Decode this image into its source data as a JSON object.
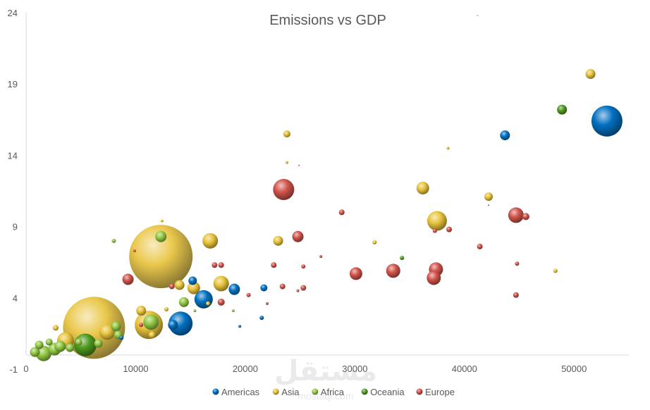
{
  "chart_data": {
    "type": "scatter",
    "title": "Emissions vs GDP",
    "xlabel": "",
    "ylabel": "",
    "xlim": [
      0,
      55000
    ],
    "ylim": [
      -1,
      24
    ],
    "x_ticks": [
      0,
      10000,
      20000,
      30000,
      40000,
      50000
    ],
    "y_ticks": [
      -1,
      4,
      9,
      14,
      19,
      24
    ],
    "grid": false,
    "legend_position": "bottom",
    "series": [
      {
        "name": "Americas",
        "color": "#0070c0",
        "points": [
          {
            "x": 53000,
            "y": 16.4,
            "r": 22
          },
          {
            "x": 43700,
            "y": 15.4,
            "r": 7
          },
          {
            "x": 14100,
            "y": 2.2,
            "r": 17
          },
          {
            "x": 16200,
            "y": 3.9,
            "r": 13
          },
          {
            "x": 13400,
            "y": 2.1,
            "r": 7
          },
          {
            "x": 15200,
            "y": 5.2,
            "r": 6
          },
          {
            "x": 19000,
            "y": 4.6,
            "r": 8
          },
          {
            "x": 21700,
            "y": 4.7,
            "r": 5
          },
          {
            "x": 21500,
            "y": 2.6,
            "r": 3
          },
          {
            "x": 19500,
            "y": 2.0,
            "r": 2
          },
          {
            "x": 8700,
            "y": 1.2,
            "r": 3
          }
        ]
      },
      {
        "name": "Asia",
        "color": "#e8c33c",
        "points": [
          {
            "x": 12300,
            "y": 6.9,
            "r": 45
          },
          {
            "x": 6200,
            "y": 1.9,
            "r": 44
          },
          {
            "x": 11200,
            "y": 2.1,
            "r": 20
          },
          {
            "x": 51500,
            "y": 19.7,
            "r": 7
          },
          {
            "x": 23800,
            "y": 15.5,
            "r": 5
          },
          {
            "x": 36200,
            "y": 11.7,
            "r": 9
          },
          {
            "x": 37500,
            "y": 9.4,
            "r": 14
          },
          {
            "x": 42200,
            "y": 11.1,
            "r": 6
          },
          {
            "x": 16800,
            "y": 8.0,
            "r": 11
          },
          {
            "x": 23000,
            "y": 8.0,
            "r": 7
          },
          {
            "x": 17800,
            "y": 5.0,
            "r": 11
          },
          {
            "x": 15300,
            "y": 4.7,
            "r": 9
          },
          {
            "x": 14000,
            "y": 4.9,
            "r": 7
          },
          {
            "x": 10500,
            "y": 3.1,
            "r": 7
          },
          {
            "x": 7400,
            "y": 1.6,
            "r": 11
          },
          {
            "x": 3600,
            "y": 1.0,
            "r": 12
          },
          {
            "x": 2700,
            "y": 1.9,
            "r": 4
          },
          {
            "x": 11500,
            "y": 1.4,
            "r": 5
          },
          {
            "x": 12800,
            "y": 3.2,
            "r": 3
          },
          {
            "x": 23800,
            "y": 13.5,
            "r": 2
          },
          {
            "x": 38500,
            "y": 14.5,
            "r": 2
          },
          {
            "x": 31800,
            "y": 7.9,
            "r": 3
          },
          {
            "x": 48300,
            "y": 5.9,
            "r": 3
          },
          {
            "x": 41200,
            "y": 23.8,
            "r": 1
          },
          {
            "x": 12400,
            "y": 9.4,
            "r": 2
          },
          {
            "x": 16600,
            "y": 3.6,
            "r": 3
          }
        ]
      },
      {
        "name": "Africa",
        "color": "#92c843",
        "points": [
          {
            "x": 12300,
            "y": 8.3,
            "r": 8
          },
          {
            "x": 8000,
            "y": 8.0,
            "r": 3
          },
          {
            "x": 11400,
            "y": 2.3,
            "r": 11
          },
          {
            "x": 14400,
            "y": 3.7,
            "r": 7
          },
          {
            "x": 8200,
            "y": 2.0,
            "r": 7
          },
          {
            "x": 8400,
            "y": 1.4,
            "r": 6
          },
          {
            "x": 1600,
            "y": 0.1,
            "r": 11
          },
          {
            "x": 2600,
            "y": 0.4,
            "r": 9
          },
          {
            "x": 800,
            "y": 0.2,
            "r": 7
          },
          {
            "x": 3100,
            "y": 0.6,
            "r": 8
          },
          {
            "x": 4000,
            "y": 0.5,
            "r": 6
          },
          {
            "x": 1200,
            "y": 0.7,
            "r": 6
          },
          {
            "x": 2100,
            "y": 0.9,
            "r": 5
          },
          {
            "x": 4800,
            "y": 0.9,
            "r": 5
          },
          {
            "x": 6600,
            "y": 0.8,
            "r": 6
          },
          {
            "x": 15400,
            "y": 3.1,
            "r": 2
          },
          {
            "x": 18900,
            "y": 3.1,
            "r": 2
          }
        ]
      },
      {
        "name": "Oceania",
        "color": "#4e9a1f",
        "points": [
          {
            "x": 48900,
            "y": 17.2,
            "r": 7
          },
          {
            "x": 5400,
            "y": 0.7,
            "r": 16
          },
          {
            "x": 34300,
            "y": 6.8,
            "r": 3
          }
        ]
      },
      {
        "name": "Europe",
        "color": "#d0544a",
        "points": [
          {
            "x": 23500,
            "y": 11.6,
            "r": 15
          },
          {
            "x": 44700,
            "y": 9.8,
            "r": 11
          },
          {
            "x": 45600,
            "y": 9.7,
            "r": 5
          },
          {
            "x": 37400,
            "y": 6.0,
            "r": 10
          },
          {
            "x": 37200,
            "y": 5.4,
            "r": 10
          },
          {
            "x": 33500,
            "y": 5.9,
            "r": 10
          },
          {
            "x": 30100,
            "y": 5.7,
            "r": 9
          },
          {
            "x": 24800,
            "y": 8.3,
            "r": 8
          },
          {
            "x": 9300,
            "y": 5.3,
            "r": 8
          },
          {
            "x": 17800,
            "y": 3.7,
            "r": 5
          },
          {
            "x": 28800,
            "y": 10.0,
            "r": 4
          },
          {
            "x": 38600,
            "y": 8.8,
            "r": 4
          },
          {
            "x": 41400,
            "y": 7.6,
            "r": 4
          },
          {
            "x": 44700,
            "y": 4.2,
            "r": 4
          },
          {
            "x": 44800,
            "y": 6.4,
            "r": 3
          },
          {
            "x": 22600,
            "y": 6.3,
            "r": 4
          },
          {
            "x": 17200,
            "y": 6.3,
            "r": 4
          },
          {
            "x": 17800,
            "y": 6.3,
            "r": 4
          },
          {
            "x": 23400,
            "y": 4.8,
            "r": 4
          },
          {
            "x": 25300,
            "y": 4.7,
            "r": 4
          },
          {
            "x": 25300,
            "y": 6.2,
            "r": 3
          },
          {
            "x": 13300,
            "y": 4.8,
            "r": 4
          },
          {
            "x": 20300,
            "y": 4.2,
            "r": 3
          },
          {
            "x": 22000,
            "y": 3.6,
            "r": 2
          },
          {
            "x": 24800,
            "y": 4.5,
            "r": 2
          },
          {
            "x": 37300,
            "y": 8.7,
            "r": 3
          },
          {
            "x": 26900,
            "y": 6.9,
            "r": 2
          },
          {
            "x": 9900,
            "y": 7.3,
            "r": 2
          },
          {
            "x": 24900,
            "y": 13.3,
            "r": 1
          },
          {
            "x": 42200,
            "y": 10.5,
            "r": 1
          },
          {
            "x": 10500,
            "y": 2.1,
            "r": 3
          }
        ]
      }
    ]
  },
  "watermark": {
    "text": "مستقل",
    "sub": "mostaql.com"
  }
}
